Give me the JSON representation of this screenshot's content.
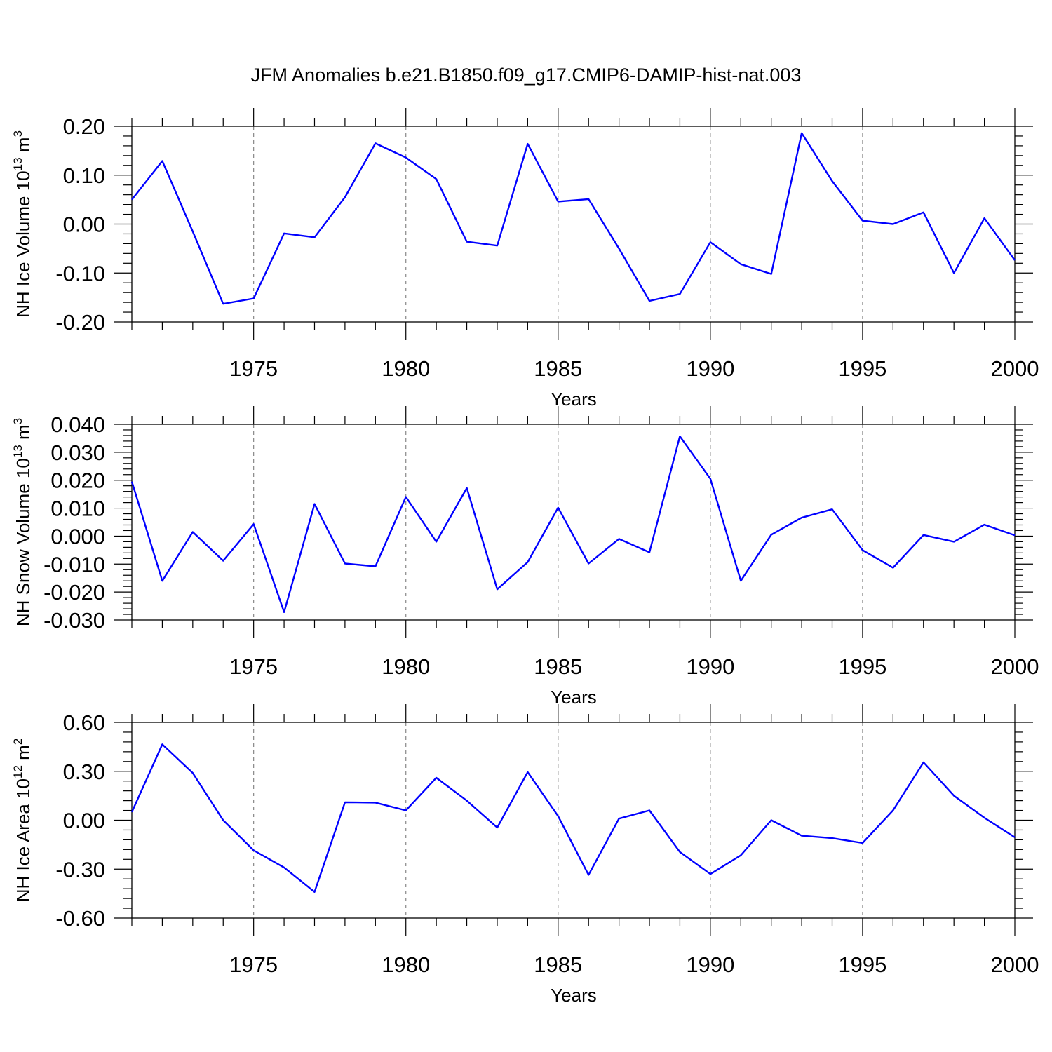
{
  "title": "JFM Anomalies b.e21.B1850.f09_g17.CMIP6-DAMIP-hist-nat.003",
  "chart_data": [
    {
      "type": "line",
      "id": "ice-volume",
      "ylabel": "NH Ice Volume 10",
      "ylabel_sup": "13",
      "ylabel_unit": " m",
      "ylabel_unit_sup": "3",
      "xlabel": "Years",
      "xlim": [
        1971,
        2000
      ],
      "ylim": [
        -0.2,
        0.2
      ],
      "yticks": [
        0.2,
        0.1,
        0.0,
        -0.1,
        -0.2
      ],
      "ytick_labels": [
        "0.20",
        "0.10",
        "0.00",
        "-0.10",
        "-0.20"
      ],
      "xticks": [
        1975,
        1980,
        1985,
        1990,
        1995,
        2000
      ],
      "xtick_labels": [
        "1975",
        "1980",
        "1985",
        "1990",
        "1995",
        "2000"
      ],
      "series_color": "#0000ff",
      "x": [
        1971,
        1972,
        1973,
        1974,
        1975,
        1976,
        1977,
        1978,
        1979,
        1980,
        1981,
        1982,
        1983,
        1984,
        1985,
        1986,
        1987,
        1988,
        1989,
        1990,
        1991,
        1992,
        1993,
        1994,
        1995,
        1996,
        1997,
        1998,
        1999,
        2000
      ],
      "values": [
        0.05,
        0.129,
        -0.015,
        -0.163,
        -0.152,
        -0.019,
        -0.027,
        0.055,
        0.165,
        0.136,
        0.092,
        -0.036,
        -0.044,
        0.164,
        0.046,
        0.051,
        -0.05,
        -0.157,
        -0.143,
        -0.037,
        -0.082,
        -0.102,
        0.186,
        0.088,
        0.007,
        0.0,
        0.024,
        -0.1,
        0.012,
        -0.074
      ]
    },
    {
      "type": "line",
      "id": "snow-volume",
      "ylabel": "NH Snow Volume 10",
      "ylabel_sup": "13",
      "ylabel_unit": " m",
      "ylabel_unit_sup": "3",
      "xlabel": "Years",
      "xlim": [
        1971,
        2000
      ],
      "ylim": [
        -0.03,
        0.04
      ],
      "yticks": [
        0.04,
        0.03,
        0.02,
        0.01,
        0.0,
        -0.01,
        -0.02,
        -0.03
      ],
      "ytick_labels": [
        "0.040",
        "0.030",
        "0.020",
        "0.010",
        "0.000",
        "-0.010",
        "-0.020",
        "-0.030"
      ],
      "xticks": [
        1975,
        1980,
        1985,
        1990,
        1995,
        2000
      ],
      "xtick_labels": [
        "1975",
        "1980",
        "1985",
        "1990",
        "1995",
        "2000"
      ],
      "series_color": "#0000ff",
      "x": [
        1971,
        1972,
        1973,
        1974,
        1975,
        1976,
        1977,
        1978,
        1979,
        1980,
        1981,
        1982,
        1983,
        1984,
        1985,
        1986,
        1987,
        1988,
        1989,
        1990,
        1991,
        1992,
        1993,
        1994,
        1995,
        1996,
        1997,
        1998,
        1999,
        2000
      ],
      "values": [
        0.0195,
        -0.016,
        0.0015,
        -0.0088,
        0.0043,
        -0.0272,
        0.0115,
        -0.0098,
        -0.0108,
        0.014,
        -0.002,
        0.0172,
        -0.019,
        -0.0093,
        0.0102,
        -0.0098,
        -0.001,
        -0.0058,
        0.0357,
        0.0205,
        -0.016,
        0.0005,
        0.0066,
        0.0096,
        -0.005,
        -0.0113,
        0.0004,
        -0.002,
        0.0041,
        0.0003
      ]
    },
    {
      "type": "line",
      "id": "ice-area",
      "ylabel": "NH Ice Area 10",
      "ylabel_sup": "12",
      "ylabel_unit": " m",
      "ylabel_unit_sup": "2",
      "xlabel": "Years",
      "xlim": [
        1971,
        2000
      ],
      "ylim": [
        -0.6,
        0.6
      ],
      "yticks": [
        0.6,
        0.3,
        0.0,
        -0.3,
        -0.6
      ],
      "ytick_labels": [
        "0.60",
        "0.30",
        "0.00",
        "-0.30",
        "-0.60"
      ],
      "xticks": [
        1975,
        1980,
        1985,
        1990,
        1995,
        2000
      ],
      "xtick_labels": [
        "1975",
        "1980",
        "1985",
        "1990",
        "1995",
        "2000"
      ],
      "series_color": "#0000ff",
      "x": [
        1971,
        1972,
        1973,
        1974,
        1975,
        1976,
        1977,
        1978,
        1979,
        1980,
        1981,
        1982,
        1983,
        1984,
        1985,
        1986,
        1987,
        1988,
        1989,
        1990,
        1991,
        1992,
        1993,
        1994,
        1995,
        1996,
        1997,
        1998,
        1999,
        2000
      ],
      "values": [
        0.05,
        0.465,
        0.29,
        0.0,
        -0.185,
        -0.29,
        -0.44,
        0.11,
        0.108,
        0.06,
        0.26,
        0.12,
        -0.045,
        0.295,
        0.025,
        -0.335,
        0.01,
        0.06,
        -0.195,
        -0.33,
        -0.215,
        0.0,
        -0.095,
        -0.11,
        -0.14,
        0.06,
        0.355,
        0.15,
        0.015,
        -0.105
      ]
    }
  ]
}
